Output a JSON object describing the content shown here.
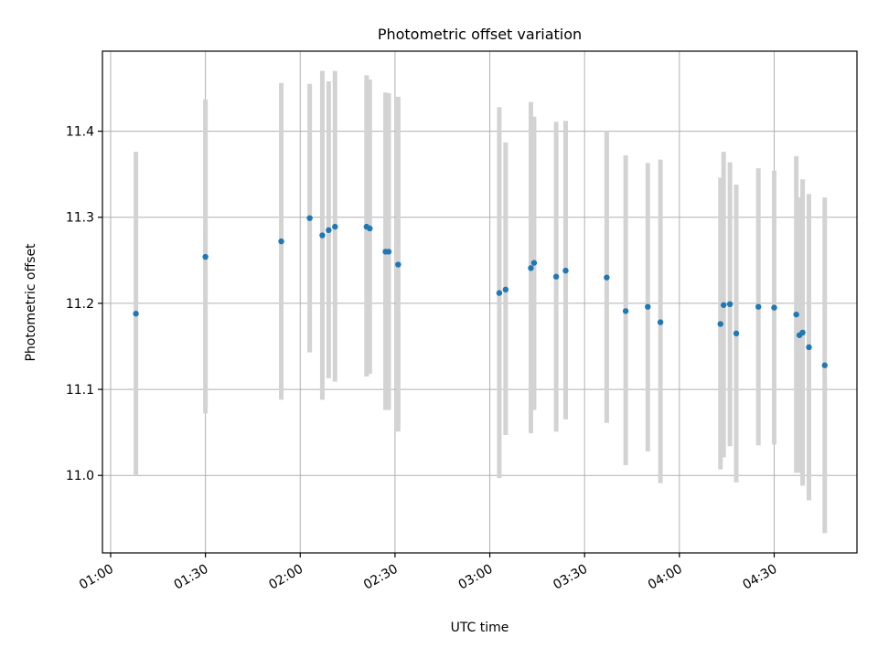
{
  "chart_data": {
    "type": "scatter",
    "title": "Photometric offset variation",
    "xlabel": "UTC time",
    "ylabel": "Photometric offset",
    "x_tick_labels": [
      "01:00",
      "01:30",
      "02:00",
      "02:30",
      "03:00",
      "03:30",
      "04:00",
      "04:30"
    ],
    "x_ticks_minutes": [
      60,
      90,
      120,
      150,
      180,
      210,
      240,
      270
    ],
    "xlim_minutes": [
      57.4,
      296.2
    ],
    "y_ticks": [
      11.0,
      11.1,
      11.2,
      11.3,
      11.4
    ],
    "ylim": [
      10.91,
      11.493
    ],
    "grid": true,
    "point_color": "#1f77b4",
    "errorbar_color": "#d3d3d3",
    "series": [
      {
        "points": [
          {
            "t": "01:08",
            "y": 11.188,
            "lo": 11.0,
            "hi": 11.376
          },
          {
            "t": "01:30",
            "y": 11.254,
            "lo": 11.072,
            "hi": 11.437
          },
          {
            "t": "01:54",
            "y": 11.272,
            "lo": 11.088,
            "hi": 11.456
          },
          {
            "t": "02:03",
            "y": 11.299,
            "lo": 11.143,
            "hi": 11.455
          },
          {
            "t": "02:07",
            "y": 11.279,
            "lo": 11.088,
            "hi": 11.47
          },
          {
            "t": "02:09",
            "y": 11.285,
            "lo": 11.113,
            "hi": 11.458
          },
          {
            "t": "02:11",
            "y": 11.289,
            "lo": 11.109,
            "hi": 11.47
          },
          {
            "t": "02:21",
            "y": 11.289,
            "lo": 11.115,
            "hi": 11.465
          },
          {
            "t": "02:22",
            "y": 11.287,
            "lo": 11.118,
            "hi": 11.46
          },
          {
            "t": "02:27",
            "y": 11.26,
            "lo": 11.076,
            "hi": 11.445
          },
          {
            "t": "02:28",
            "y": 11.26,
            "lo": 11.076,
            "hi": 11.444
          },
          {
            "t": "02:31",
            "y": 11.245,
            "lo": 11.051,
            "hi": 11.44
          },
          {
            "t": "03:03",
            "y": 11.212,
            "lo": 10.997,
            "hi": 11.428
          },
          {
            "t": "03:05",
            "y": 11.216,
            "lo": 11.047,
            "hi": 11.387
          },
          {
            "t": "03:13",
            "y": 11.241,
            "lo": 11.049,
            "hi": 11.434
          },
          {
            "t": "03:14",
            "y": 11.247,
            "lo": 11.076,
            "hi": 11.417
          },
          {
            "t": "03:21",
            "y": 11.231,
            "lo": 11.051,
            "hi": 11.411
          },
          {
            "t": "03:24",
            "y": 11.238,
            "lo": 11.065,
            "hi": 11.412
          },
          {
            "t": "03:37",
            "y": 11.23,
            "lo": 11.061,
            "hi": 11.4
          },
          {
            "t": "03:43",
            "y": 11.191,
            "lo": 11.012,
            "hi": 11.372
          },
          {
            "t": "03:50",
            "y": 11.196,
            "lo": 11.028,
            "hi": 11.363
          },
          {
            "t": "03:54",
            "y": 11.178,
            "lo": 10.991,
            "hi": 11.367
          },
          {
            "t": "04:13",
            "y": 11.176,
            "lo": 11.007,
            "hi": 11.346
          },
          {
            "t": "04:14",
            "y": 11.198,
            "lo": 11.021,
            "hi": 11.376
          },
          {
            "t": "04:16",
            "y": 11.199,
            "lo": 11.034,
            "hi": 11.364
          },
          {
            "t": "04:18",
            "y": 11.165,
            "lo": 10.992,
            "hi": 11.338
          },
          {
            "t": "04:25",
            "y": 11.196,
            "lo": 11.035,
            "hi": 11.357
          },
          {
            "t": "04:30",
            "y": 11.195,
            "lo": 11.036,
            "hi": 11.354
          },
          {
            "t": "04:37",
            "y": 11.187,
            "lo": 11.003,
            "hi": 11.371
          },
          {
            "t": "04:38",
            "y": 11.163,
            "lo": 11.003,
            "hi": 11.323
          },
          {
            "t": "04:39",
            "y": 11.166,
            "lo": 10.988,
            "hi": 11.344
          },
          {
            "t": "04:41",
            "y": 11.149,
            "lo": 10.971,
            "hi": 11.327
          },
          {
            "t": "04:46",
            "y": 11.128,
            "lo": 10.933,
            "hi": 11.323
          }
        ]
      }
    ]
  }
}
